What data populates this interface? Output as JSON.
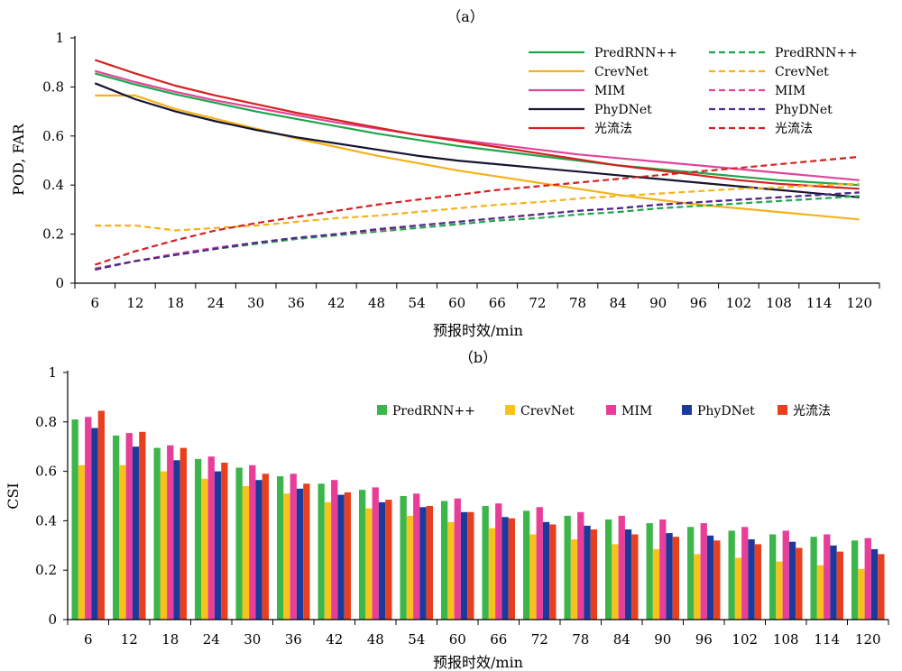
{
  "chart_data": [
    {
      "type": "line",
      "panel_label": "（a）",
      "ylabel": "POD, FAR",
      "xlabel": "预报时效/min",
      "x": [
        6,
        12,
        18,
        24,
        30,
        36,
        42,
        48,
        54,
        60,
        66,
        72,
        78,
        84,
        90,
        96,
        102,
        108,
        114,
        120
      ],
      "ylim": [
        0,
        1
      ],
      "yticks": [
        0,
        0.2,
        0.4,
        0.6,
        0.8,
        1
      ],
      "ytick_labels": [
        "0",
        "0.2",
        "0.4",
        "0.6",
        "0.8",
        "1"
      ],
      "legend_placement": "top-right",
      "series": [
        {
          "name": "PredRNN++",
          "metric": "POD",
          "style": "solid",
          "color": "#1fa64a",
          "values": [
            0.855,
            0.81,
            0.77,
            0.735,
            0.7,
            0.67,
            0.64,
            0.61,
            0.585,
            0.56,
            0.54,
            0.52,
            0.5,
            0.48,
            0.465,
            0.45,
            0.435,
            0.42,
            0.41,
            0.4
          ]
        },
        {
          "name": "CrevNet",
          "metric": "POD",
          "style": "solid",
          "color": "#f5b219",
          "values": [
            0.765,
            0.765,
            0.71,
            0.67,
            0.63,
            0.59,
            0.555,
            0.52,
            0.49,
            0.46,
            0.435,
            0.41,
            0.385,
            0.36,
            0.34,
            0.32,
            0.305,
            0.29,
            0.275,
            0.26
          ]
        },
        {
          "name": "MIM",
          "metric": "POD",
          "style": "solid",
          "color": "#e0459a",
          "values": [
            0.865,
            0.82,
            0.78,
            0.745,
            0.715,
            0.685,
            0.655,
            0.63,
            0.605,
            0.585,
            0.565,
            0.545,
            0.525,
            0.51,
            0.495,
            0.48,
            0.465,
            0.45,
            0.435,
            0.42
          ]
        },
        {
          "name": "PhyDNet",
          "metric": "POD",
          "style": "solid",
          "color": "#141433",
          "values": [
            0.815,
            0.75,
            0.7,
            0.66,
            0.625,
            0.595,
            0.57,
            0.545,
            0.52,
            0.5,
            0.485,
            0.47,
            0.455,
            0.44,
            0.425,
            0.41,
            0.395,
            0.38,
            0.365,
            0.35
          ]
        },
        {
          "name": "光流法",
          "metric": "POD",
          "style": "solid",
          "color": "#d62020",
          "values": [
            0.91,
            0.855,
            0.805,
            0.765,
            0.73,
            0.695,
            0.665,
            0.635,
            0.605,
            0.58,
            0.555,
            0.53,
            0.505,
            0.48,
            0.46,
            0.44,
            0.42,
            0.405,
            0.395,
            0.385
          ]
        },
        {
          "name": "PredRNN++",
          "metric": "FAR",
          "style": "dashed",
          "color": "#1fa64a",
          "values": [
            0.06,
            0.09,
            0.115,
            0.14,
            0.16,
            0.18,
            0.195,
            0.21,
            0.225,
            0.24,
            0.255,
            0.265,
            0.28,
            0.29,
            0.305,
            0.315,
            0.325,
            0.335,
            0.345,
            0.355
          ]
        },
        {
          "name": "CrevNet",
          "metric": "FAR",
          "style": "dashed",
          "color": "#f5b219",
          "values": [
            0.235,
            0.235,
            0.215,
            0.225,
            0.235,
            0.25,
            0.265,
            0.275,
            0.29,
            0.305,
            0.32,
            0.33,
            0.345,
            0.355,
            0.365,
            0.375,
            0.385,
            0.39,
            0.4,
            0.405
          ]
        },
        {
          "name": "MIM",
          "metric": "FAR",
          "style": "dashed",
          "color": "#e0459a",
          "values": [
            0.06,
            0.09,
            0.12,
            0.145,
            0.165,
            0.185,
            0.2,
            0.215,
            0.235,
            0.25,
            0.265,
            0.28,
            0.295,
            0.305,
            0.32,
            0.33,
            0.34,
            0.35,
            0.36,
            0.37
          ]
        },
        {
          "name": "PhyDNet",
          "metric": "FAR",
          "style": "dashed",
          "color": "#4b2a8c",
          "values": [
            0.055,
            0.09,
            0.115,
            0.14,
            0.165,
            0.185,
            0.2,
            0.22,
            0.235,
            0.25,
            0.265,
            0.28,
            0.295,
            0.305,
            0.32,
            0.33,
            0.34,
            0.35,
            0.36,
            0.37
          ]
        },
        {
          "name": "光流法",
          "metric": "FAR",
          "style": "dashed",
          "color": "#d62020",
          "values": [
            0.075,
            0.13,
            0.175,
            0.215,
            0.245,
            0.27,
            0.295,
            0.32,
            0.34,
            0.36,
            0.38,
            0.395,
            0.41,
            0.425,
            0.44,
            0.455,
            0.47,
            0.485,
            0.5,
            0.515
          ]
        }
      ]
    },
    {
      "type": "bar",
      "panel_label": "（b）",
      "ylabel": "CSI",
      "xlabel": "预报时效/min",
      "categories": [
        6,
        12,
        18,
        24,
        30,
        36,
        42,
        48,
        54,
        60,
        66,
        72,
        78,
        84,
        90,
        96,
        102,
        108,
        114,
        120
      ],
      "ylim": [
        0,
        1
      ],
      "yticks": [
        0,
        0.2,
        0.4,
        0.6,
        0.8,
        1
      ],
      "ytick_labels": [
        "0",
        "0.2",
        "0.4",
        "0.6",
        "0.8",
        "1"
      ],
      "legend_placement": "top-right",
      "series": [
        {
          "name": "PredRNN++",
          "color": "#3cb54a",
          "values": [
            0.81,
            0.745,
            0.695,
            0.65,
            0.615,
            0.58,
            0.55,
            0.525,
            0.5,
            0.48,
            0.46,
            0.44,
            0.42,
            0.405,
            0.39,
            0.375,
            0.36,
            0.345,
            0.335,
            0.32
          ]
        },
        {
          "name": "CrevNet",
          "color": "#f7c21c",
          "values": [
            0.625,
            0.625,
            0.6,
            0.57,
            0.54,
            0.51,
            0.475,
            0.45,
            0.42,
            0.395,
            0.37,
            0.345,
            0.325,
            0.305,
            0.285,
            0.265,
            0.25,
            0.235,
            0.22,
            0.205
          ]
        },
        {
          "name": "MIM",
          "color": "#e83e98",
          "values": [
            0.82,
            0.755,
            0.705,
            0.66,
            0.625,
            0.59,
            0.565,
            0.535,
            0.51,
            0.49,
            0.47,
            0.455,
            0.435,
            0.42,
            0.405,
            0.39,
            0.375,
            0.36,
            0.345,
            0.33
          ]
        },
        {
          "name": "PhyDNet",
          "color": "#1b3a9c",
          "values": [
            0.775,
            0.7,
            0.645,
            0.6,
            0.565,
            0.53,
            0.505,
            0.475,
            0.455,
            0.435,
            0.415,
            0.395,
            0.38,
            0.365,
            0.35,
            0.34,
            0.325,
            0.315,
            0.3,
            0.285
          ]
        },
        {
          "name": "光流法",
          "color": "#e8401f",
          "values": [
            0.845,
            0.76,
            0.695,
            0.635,
            0.59,
            0.55,
            0.515,
            0.485,
            0.46,
            0.435,
            0.41,
            0.385,
            0.365,
            0.345,
            0.335,
            0.32,
            0.305,
            0.29,
            0.275,
            0.265
          ]
        }
      ]
    }
  ]
}
